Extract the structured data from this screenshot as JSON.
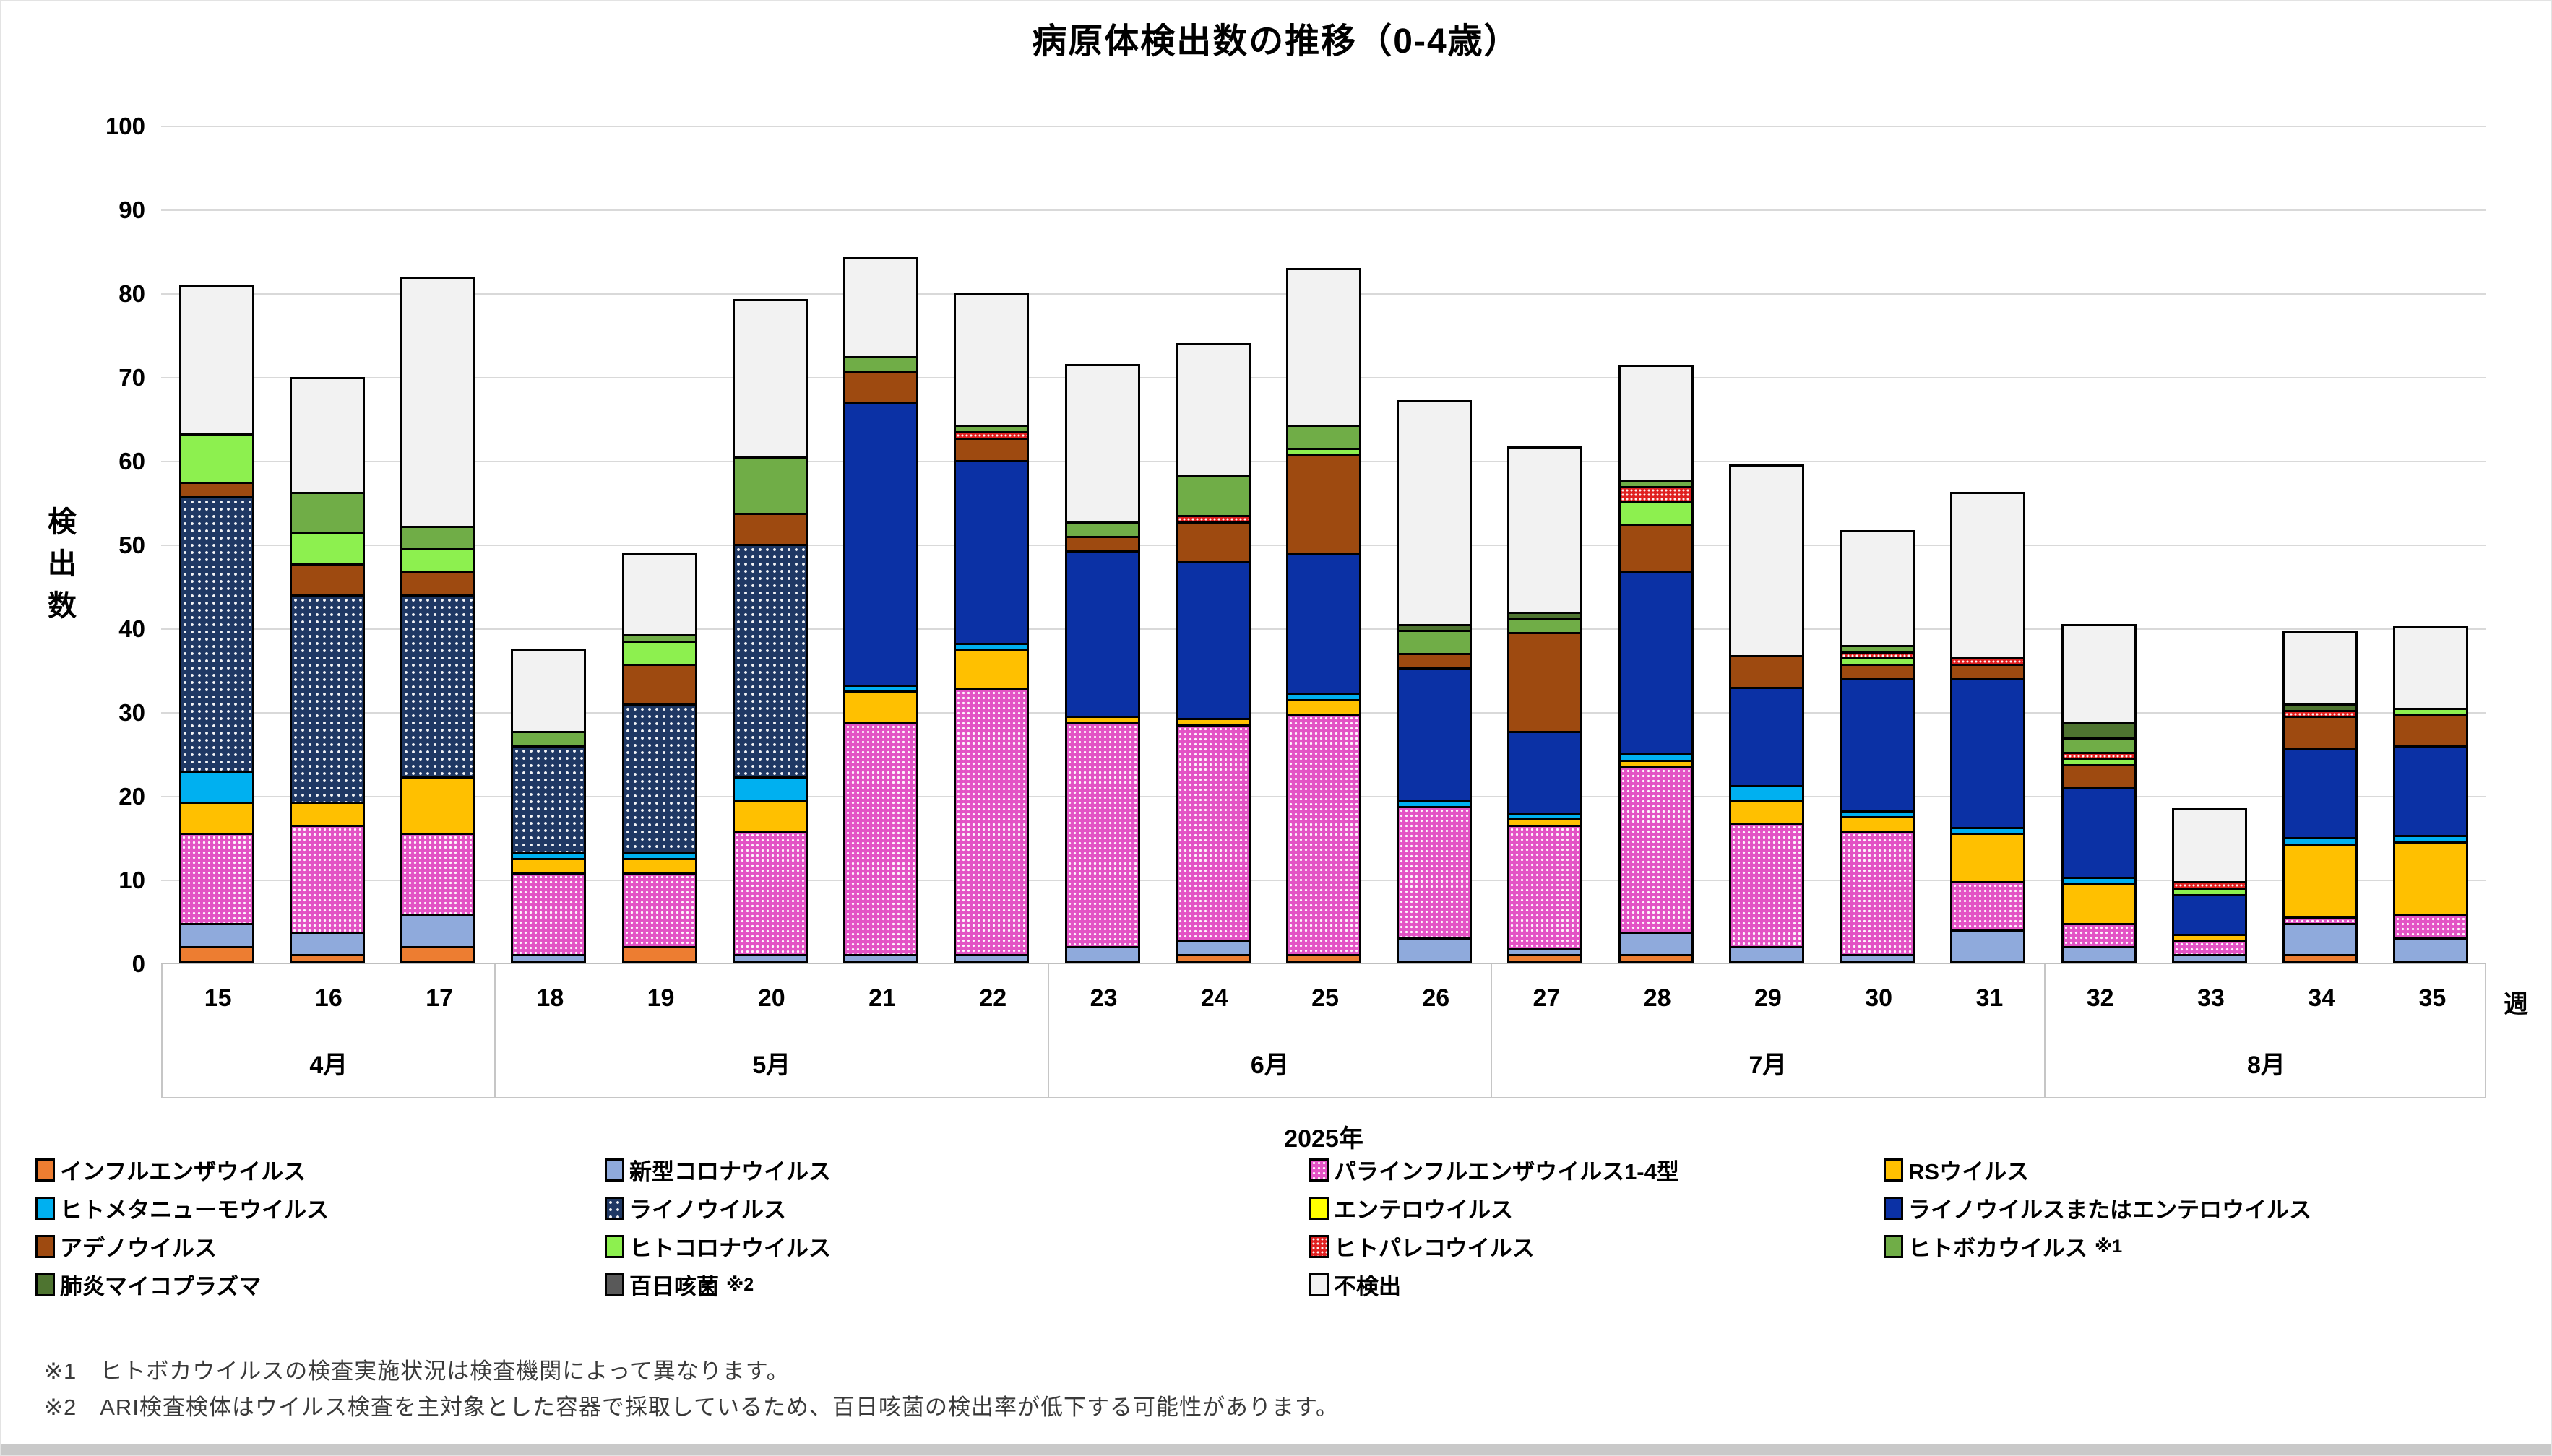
{
  "title": "病原体検出数の推移（0-4歳）",
  "y_axis": {
    "title": "検出数",
    "ticks": [
      0,
      10,
      20,
      30,
      40,
      50,
      60,
      70,
      80,
      90,
      100
    ],
    "max": 100
  },
  "x_axis": {
    "unit_label": "週",
    "year_label": "2025年",
    "weeks": [
      "15",
      "16",
      "17",
      "18",
      "19",
      "20",
      "21",
      "22",
      "23",
      "24",
      "25",
      "26",
      "27",
      "28",
      "29",
      "30",
      "31",
      "32",
      "33",
      "34",
      "35"
    ],
    "month_groups": [
      {
        "label": "4月",
        "span": 3
      },
      {
        "label": "5月",
        "span": 5
      },
      {
        "label": "6月",
        "span": 4
      },
      {
        "label": "7月",
        "span": 5
      },
      {
        "label": "8月",
        "span": 4
      }
    ]
  },
  "chart_data": {
    "type": "bar",
    "stacked": true,
    "title": "病原体検出数の推移（0-4歳）",
    "xlabel": "週",
    "ylabel": "検出数",
    "ylim": [
      0,
      100
    ],
    "grid": true,
    "categories": [
      15,
      16,
      17,
      18,
      19,
      20,
      21,
      22,
      23,
      24,
      25,
      26,
      27,
      28,
      29,
      30,
      31,
      32,
      33,
      34,
      35
    ],
    "series": [
      {
        "name": "インフルエンザウイルス",
        "color": "#ED7D31",
        "pattern": "none",
        "values": [
          2,
          1,
          2,
          0,
          2,
          0,
          0,
          0,
          0,
          1,
          1,
          0,
          1,
          1,
          0,
          0,
          0,
          0,
          0,
          1,
          0
        ]
      },
      {
        "name": "新型コロナウイルス",
        "color": "#8FAADC",
        "pattern": "none",
        "values": [
          3,
          3,
          4,
          1,
          0,
          1,
          1,
          1,
          2,
          2,
          0,
          3,
          1,
          3,
          2,
          1,
          4,
          2,
          1,
          4,
          3
        ]
      },
      {
        "name": "パラインフルエンザウイルス1-4型",
        "color": "#E353C5",
        "pattern": "pink-dots",
        "values": [
          11,
          13,
          10,
          10,
          9,
          15,
          28,
          32,
          27,
          26,
          29,
          16,
          15,
          20,
          15,
          15,
          6,
          3,
          2,
          1,
          3
        ]
      },
      {
        "name": "RSウイルス",
        "color": "#FFC000",
        "pattern": "none",
        "values": [
          4,
          3,
          7,
          2,
          2,
          4,
          4,
          5,
          1,
          1,
          2,
          0,
          1,
          1,
          3,
          2,
          6,
          5,
          1,
          9,
          9
        ]
      },
      {
        "name": "ヒトメタニューモウイルス",
        "color": "#00B0F0",
        "pattern": "none",
        "values": [
          4,
          0,
          0,
          1,
          1,
          3,
          1,
          1,
          0,
          0,
          1,
          1,
          1,
          1,
          2,
          1,
          1,
          1,
          0,
          1,
          1
        ]
      },
      {
        "name": "ライノウイルス",
        "color": "#1F3864",
        "pattern": "navy-dots",
        "values": [
          33,
          25,
          22,
          13,
          18,
          28,
          0,
          0,
          0,
          0,
          0,
          0,
          0,
          0,
          0,
          0,
          0,
          0,
          0,
          0,
          0
        ]
      },
      {
        "name": "エンテロウイルス",
        "color": "#FFFF00",
        "pattern": "none",
        "values": [
          0,
          0,
          0,
          0,
          0,
          0,
          0,
          0,
          0,
          0,
          0,
          0,
          0,
          0,
          0,
          0,
          0,
          0,
          0,
          0,
          0
        ]
      },
      {
        "name": "ライノウイルスまたはエンテロウイルス",
        "color": "#0B31A5",
        "pattern": "none",
        "values": [
          0,
          0,
          0,
          0,
          0,
          0,
          34,
          22,
          20,
          19,
          17,
          16,
          10,
          22,
          12,
          16,
          18,
          11,
          5,
          11,
          11
        ]
      },
      {
        "name": "アデノウイルス",
        "color": "#9E4A10",
        "pattern": "none",
        "values": [
          2,
          4,
          3,
          0,
          5,
          4,
          4,
          3,
          2,
          5,
          12,
          2,
          12,
          6,
          4,
          2,
          2,
          3,
          0,
          4,
          4
        ]
      },
      {
        "name": "ヒトコロナウイルス",
        "color": "#8DF04F",
        "pattern": "none",
        "values": [
          6,
          4,
          3,
          0,
          3,
          0,
          0,
          0,
          0,
          0,
          1,
          0,
          0,
          3,
          0,
          1,
          0,
          1,
          1,
          0,
          1
        ]
      },
      {
        "name": "ヒトパレコウイルス",
        "color": "#E02020",
        "pattern": "red-dots",
        "values": [
          0,
          0,
          0,
          0,
          0,
          0,
          0,
          1,
          0,
          1,
          0,
          0,
          0,
          2,
          0,
          1,
          1,
          1,
          1,
          1,
          0
        ]
      },
      {
        "name": "ヒトボカウイルス",
        "color": "#70AD47",
        "pattern": "none",
        "values": [
          0,
          5,
          3,
          2,
          1,
          7,
          2,
          1,
          2,
          5,
          3,
          3,
          2,
          1,
          0,
          1,
          0,
          2,
          0,
          0,
          0
        ]
      },
      {
        "name": "肺炎マイコプラズマ",
        "color": "#4E7430",
        "pattern": "none",
        "values": [
          0,
          0,
          0,
          0,
          0,
          0,
          0,
          0,
          0,
          0,
          0,
          1,
          1,
          0,
          0,
          0,
          0,
          2,
          0,
          1,
          0
        ]
      },
      {
        "name": "百日咳菌",
        "color": "#595959",
        "pattern": "none",
        "values": [
          0,
          0,
          0,
          0,
          0,
          0,
          0,
          0,
          0,
          0,
          0,
          0,
          0,
          0,
          0,
          0,
          0,
          0,
          0,
          0,
          0
        ]
      },
      {
        "name": "不検出",
        "color": "#F2F2F2",
        "pattern": "none",
        "values": [
          18,
          14,
          30,
          10,
          10,
          19,
          12,
          16,
          19,
          16,
          19,
          27,
          20,
          14,
          23,
          14,
          20,
          12,
          9,
          9,
          10
        ]
      }
    ],
    "totals": [
      83,
      72,
      84,
      39,
      51,
      81,
      86,
      82,
      73,
      76,
      85,
      69,
      64,
      74,
      61,
      54,
      58,
      43,
      20,
      42,
      42
    ],
    "legend_position": "bottom"
  },
  "legend": {
    "items": [
      {
        "series": 0,
        "label": "インフルエンザウイルス",
        "sup": ""
      },
      {
        "series": 1,
        "label": "新型コロナウイルス",
        "sup": ""
      },
      {
        "series": 2,
        "label": "パラインフルエンザウイルス1-4型",
        "sup": ""
      },
      {
        "series": 3,
        "label": "RSウイルス",
        "sup": ""
      },
      {
        "series": 4,
        "label": "ヒトメタニューモウイルス",
        "sup": ""
      },
      {
        "series": 5,
        "label": "ライノウイルス",
        "sup": ""
      },
      {
        "series": 6,
        "label": "エンテロウイルス",
        "sup": ""
      },
      {
        "series": 7,
        "label": "ライノウイルスまたはエンテロウイルス",
        "sup": ""
      },
      {
        "series": 8,
        "label": "アデノウイルス",
        "sup": ""
      },
      {
        "series": 9,
        "label": "ヒトコロナウイルス",
        "sup": ""
      },
      {
        "series": 10,
        "label": "ヒトパレコウイルス",
        "sup": ""
      },
      {
        "series": 11,
        "label": "ヒトボカウイルス",
        "sup": "※1"
      },
      {
        "series": 12,
        "label": "肺炎マイコプラズマ",
        "sup": ""
      },
      {
        "series": 13,
        "label": "百日咳菌",
        "sup": "※2"
      },
      {
        "series": 14,
        "label": "不検出",
        "sup": ""
      }
    ]
  },
  "footnotes": [
    "※1　ヒトボカウイルスの検査実施状況は検査機関によって異なります。",
    "※2　ARI検査検体はウイルス検査を主対象とした容器で採取しているため、百日咳菌の検出率が低下する可能性があります。"
  ]
}
